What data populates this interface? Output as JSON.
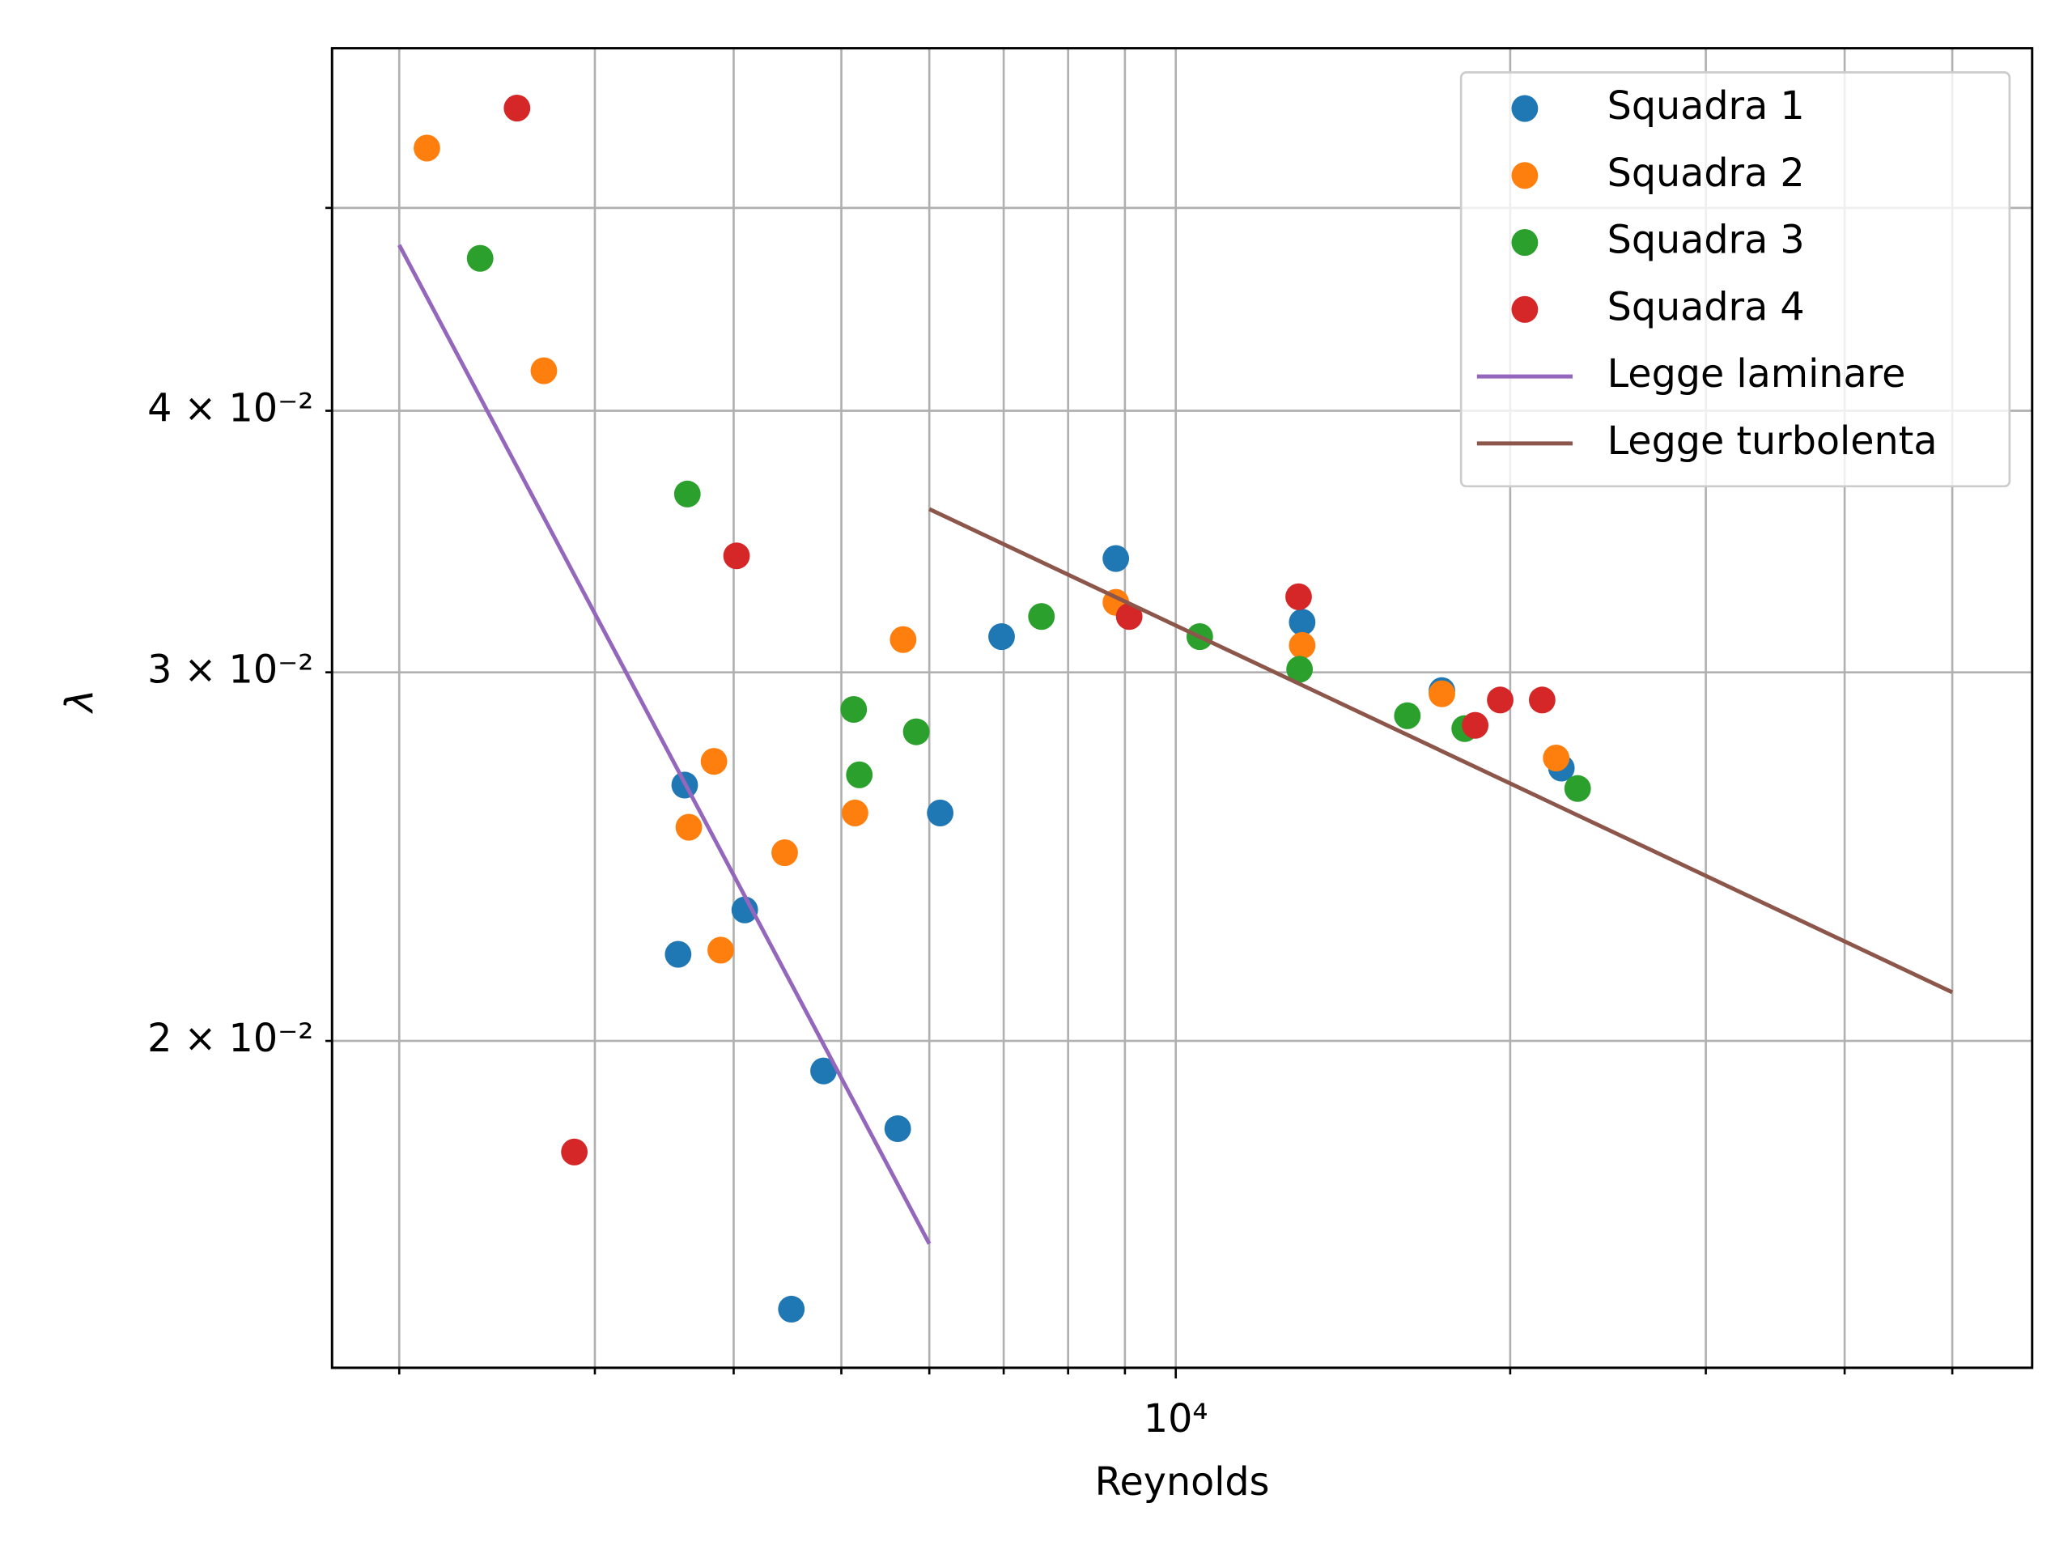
{
  "chart_data": {
    "type": "scatter",
    "x_label": "Reynolds",
    "y_label": "λ",
    "log_x": true,
    "log_y": true,
    "grid": true,
    "legend": "upper right",
    "xlim": [
      1740,
      59000
    ],
    "ylim": [
      0.01396,
      0.0596
    ],
    "xticks": [
      {
        "value": 10000,
        "label": "10⁴"
      }
    ],
    "xminorticks": [
      2000,
      3000,
      4000,
      5000,
      6000,
      7000,
      8000,
      9000,
      20000,
      30000,
      40000,
      50000
    ],
    "yticks": [
      {
        "value": 0.02,
        "label": "2 × 10⁻²"
      },
      {
        "value": 0.03,
        "label": "3 × 10⁻²"
      },
      {
        "value": 0.04,
        "label": "4 × 10⁻²"
      }
    ],
    "yminorticks": [
      0.05
    ],
    "series": [
      {
        "name": "Squadra 1",
        "kind": "marker",
        "color": "#1f77b4",
        "x": [
          3614,
          3565,
          4093,
          4819,
          4508,
          5620,
          6137,
          6970,
          8832,
          12995,
          17360,
          22240
        ],
        "values": [
          0.0265,
          0.022,
          0.0231,
          0.01935,
          0.01489,
          0.01816,
          0.0257,
          0.0312,
          0.034,
          0.0317,
          0.0294,
          0.027
        ]
      },
      {
        "name": "Squadra 2",
        "kind": "marker",
        "color": "#ff7f0e",
        "x": [
          2118,
          2699,
          3840,
          3645,
          3894,
          4446,
          5144,
          5683,
          8832,
          12995,
          17360,
          22000
        ],
        "values": [
          0.0534,
          0.0418,
          0.0272,
          0.0253,
          0.0221,
          0.0246,
          0.0257,
          0.0311,
          0.0324,
          0.0309,
          0.0293,
          0.0273
        ]
      },
      {
        "name": "Squadra 3",
        "kind": "marker",
        "color": "#2ca02c",
        "x": [
          2365,
          3634,
          5130,
          5190,
          5840,
          7570,
          10510,
          12925,
          16160,
          18200,
          23000
        ],
        "values": [
          0.0473,
          0.0365,
          0.0288,
          0.0268,
          0.0281,
          0.0319,
          0.0312,
          0.0301,
          0.0286,
          0.0282,
          0.0264
        ]
      },
      {
        "name": "Squadra 4",
        "kind": "marker",
        "color": "#d62728",
        "x": [
          2553,
          2875,
          4024,
          9080,
          12900,
          18600,
          19590,
          21370
        ],
        "values": [
          0.0558,
          0.0177,
          0.0341,
          0.0319,
          0.0326,
          0.0283,
          0.0291,
          0.0291
        ]
      },
      {
        "name": "Legge laminare",
        "kind": "line",
        "color": "#9467bd",
        "x": [
          2000,
          6000
        ],
        "values": [
          0.048,
          0.016
        ]
      },
      {
        "name": "Legge turbolenta",
        "kind": "line",
        "color": "#8c564b",
        "x": [
          6000,
          50000
        ],
        "values": [
          0.0359,
          0.0211
        ]
      }
    ]
  }
}
